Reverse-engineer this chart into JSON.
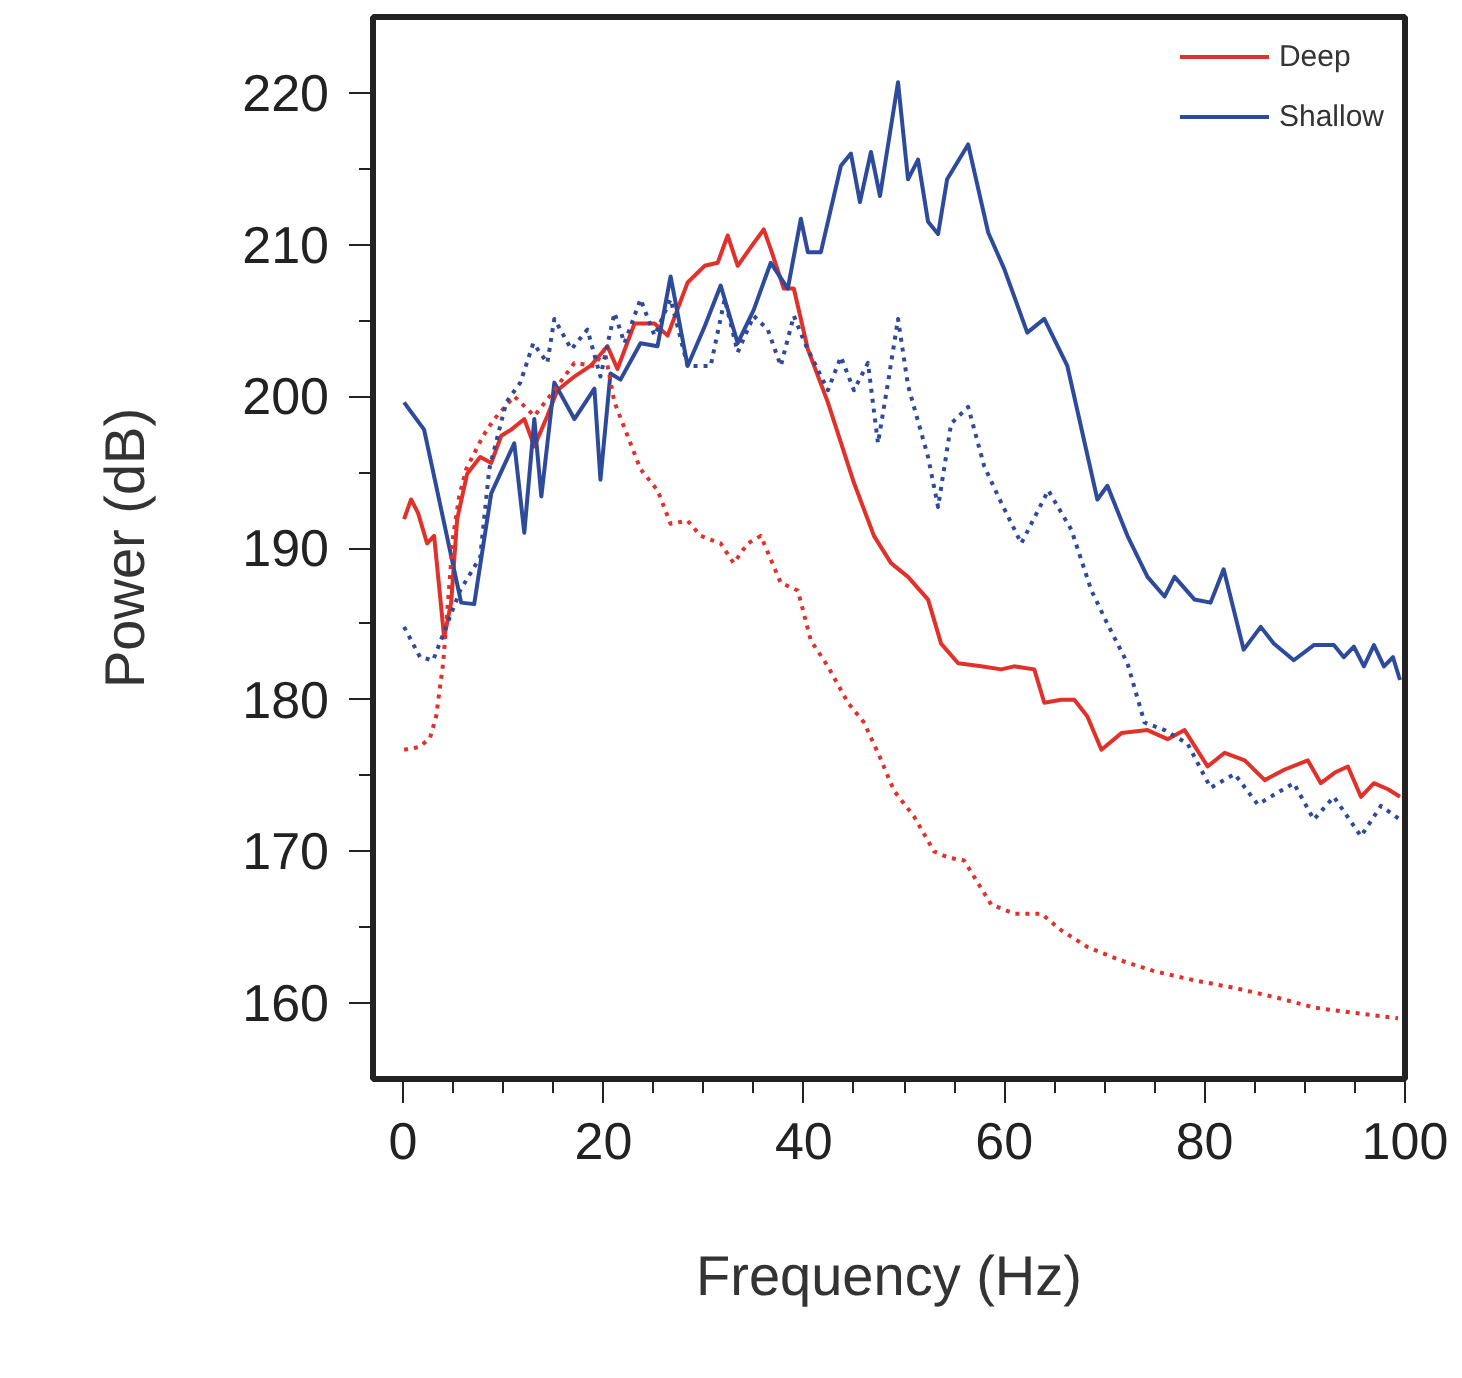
{
  "chart_data": {
    "type": "line",
    "xlabel": "Frequency (Hz)",
    "ylabel": "Power (dB)",
    "xlim": [
      -3,
      100
    ],
    "ylim": [
      155,
      225
    ],
    "xticks": [
      0,
      {
        "value": 5,
        "label": null
      },
      {
        "value": 10,
        "label": null
      },
      {
        "value": 15,
        "label": null
      },
      20,
      {
        "value": 25,
        "label": null
      },
      {
        "value": 30,
        "label": null
      },
      {
        "value": 35,
        "label": null
      },
      40,
      {
        "value": 45,
        "label": null
      },
      {
        "value": 50,
        "label": null
      },
      {
        "value": 55,
        "label": null
      },
      60,
      {
        "value": 65,
        "label": null
      },
      {
        "value": 70,
        "label": null
      },
      {
        "value": 75,
        "label": null
      },
      80,
      {
        "value": 85,
        "label": null
      },
      {
        "value": 90,
        "label": null
      },
      {
        "value": 95,
        "label": null
      },
      100
    ],
    "yticks": [
      160,
      {
        "value": 165,
        "label": null
      },
      170,
      {
        "value": 175,
        "label": null
      },
      180,
      {
        "value": 185,
        "label": null
      },
      190,
      {
        "value": 195,
        "label": null
      },
      200,
      {
        "value": 205,
        "label": null
      },
      210,
      {
        "value": 215,
        "label": null
      },
      220
    ],
    "grid": false,
    "legend": "top right",
    "series": [
      {
        "name": "Deep",
        "color": "#e0312b",
        "line_style": "solid",
        "x": [
          0.1,
          0.8,
          1.5,
          2.4,
          3.1,
          3.7,
          4.1,
          4.8,
          5.4,
          6.4,
          7.7,
          8.8,
          9.8,
          10.8,
          12.1,
          13.1,
          14.4,
          15.4,
          17.1,
          18.7,
          20.4,
          21.4,
          23.1,
          25.1,
          26.4,
          28.4,
          30.1,
          31.4,
          32.4,
          33.4,
          35.0,
          36.0,
          36.7,
          38.0,
          39.0,
          40.4,
          42.4,
          45.0,
          47.0,
          48.7,
          50.4,
          52.4,
          53.7,
          55.4,
          57.7,
          59.7,
          61.0,
          63.0,
          64.0,
          65.7,
          67.0,
          68.3,
          69.7,
          71.7,
          74.3,
          76.3,
          78.0,
          80.3,
          82.0,
          84.0,
          86.0,
          88.0,
          90.3,
          91.6,
          93.0,
          94.3,
          95.6,
          96.9,
          98.3,
          99.5
        ],
        "values": [
          191.9,
          193.2,
          192.3,
          190.3,
          190.8,
          186.8,
          184.1,
          186.4,
          191.9,
          194.9,
          196.0,
          195.6,
          197.4,
          197.8,
          198.5,
          196.7,
          198.7,
          200.4,
          201.3,
          202.0,
          203.3,
          201.8,
          204.8,
          204.8,
          204.0,
          207.5,
          208.6,
          208.8,
          210.6,
          208.6,
          210.1,
          211.0,
          209.7,
          207.1,
          207.1,
          203.1,
          199.6,
          194.3,
          190.8,
          189.0,
          188.1,
          186.6,
          183.7,
          182.4,
          182.2,
          182.0,
          182.2,
          182.0,
          179.8,
          180.0,
          180.0,
          178.9,
          176.7,
          177.8,
          178.0,
          177.4,
          178.0,
          175.6,
          176.5,
          176.0,
          174.7,
          175.4,
          176.0,
          174.5,
          175.2,
          175.6,
          173.6,
          174.5,
          174.1,
          173.6
        ]
      },
      {
        "name": "Shallow",
        "color": "#2e4a9a",
        "line_style": "solid",
        "x": [
          0.1,
          2.1,
          5.8,
          7.1,
          8.8,
          11.1,
          12.1,
          13.1,
          13.8,
          15.1,
          17.1,
          19.1,
          19.7,
          20.7,
          21.7,
          23.7,
          25.4,
          26.7,
          28.4,
          30.1,
          31.7,
          33.4,
          35.0,
          36.7,
          38.4,
          39.7,
          40.4,
          41.7,
          43.7,
          44.7,
          45.6,
          46.7,
          47.6,
          49.4,
          50.4,
          51.4,
          52.4,
          53.4,
          54.3,
          56.4,
          58.4,
          60.0,
          62.3,
          64.0,
          66.3,
          69.3,
          70.3,
          72.3,
          74.3,
          76.0,
          77.0,
          79.0,
          80.6,
          81.9,
          83.9,
          85.6,
          86.9,
          88.9,
          90.9,
          92.9,
          93.9,
          94.9,
          95.9,
          96.9,
          97.9,
          98.8,
          99.5
        ],
        "values": [
          199.6,
          197.8,
          186.4,
          186.3,
          193.6,
          196.9,
          191.0,
          198.5,
          193.4,
          200.9,
          198.5,
          200.5,
          194.5,
          201.5,
          201.1,
          203.5,
          203.3,
          207.9,
          202.0,
          204.6,
          207.3,
          203.5,
          205.7,
          208.8,
          207.1,
          211.7,
          209.5,
          209.5,
          215.2,
          216.0,
          212.8,
          216.1,
          213.2,
          220.7,
          214.3,
          215.6,
          211.5,
          210.7,
          214.3,
          216.6,
          210.8,
          208.4,
          204.2,
          205.1,
          202.0,
          193.2,
          194.1,
          190.8,
          188.1,
          186.8,
          188.1,
          186.6,
          186.4,
          188.6,
          183.3,
          184.8,
          183.7,
          182.6,
          183.6,
          183.6,
          182.8,
          183.5,
          182.2,
          183.6,
          182.2,
          182.8,
          181.3
        ]
      },
      {
        "color": "#e0312b",
        "line_style": "dotted",
        "x": [
          0.1,
          1.7,
          2.7,
          3.3,
          4.0,
          5.0,
          5.6,
          6.3,
          8.0,
          9.1,
          11.1,
          13.1,
          15.1,
          17.1,
          19.1,
          20.1,
          21.1,
          22.4,
          23.7,
          25.4,
          26.7,
          28.4,
          29.7,
          31.7,
          33.0,
          34.4,
          35.7,
          37.7,
          39.4,
          40.7,
          42.4,
          44.4,
          46.0,
          47.6,
          49.0,
          51.0,
          53.0,
          54.4,
          56.0,
          58.7,
          61.0,
          63.7,
          65.7,
          68.3,
          71.7,
          75.0,
          79.0,
          83.0,
          87.0,
          91.0,
          95.6,
          99.3
        ],
        "values": [
          176.7,
          176.9,
          177.5,
          178.9,
          182.4,
          190.8,
          193.4,
          195.2,
          197.4,
          198.5,
          200.0,
          198.7,
          200.4,
          202.2,
          202.0,
          203.1,
          199.6,
          197.4,
          195.2,
          193.8,
          191.6,
          191.8,
          190.8,
          190.3,
          189.0,
          190.3,
          190.8,
          187.7,
          187.2,
          183.9,
          182.2,
          179.8,
          178.5,
          176.2,
          174.0,
          172.3,
          170.0,
          169.6,
          169.4,
          166.5,
          165.9,
          165.9,
          164.8,
          163.7,
          162.8,
          162.1,
          161.5,
          161.0,
          160.4,
          159.7,
          159.3,
          159.0
        ]
      },
      {
        "color": "#2e4a9a",
        "line_style": "dotted",
        "x": [
          0.1,
          1.7,
          3.0,
          5.7,
          7.7,
          8.6,
          10.3,
          11.7,
          13.0,
          14.4,
          15.1,
          16.8,
          18.4,
          19.7,
          21.1,
          22.1,
          23.7,
          25.1,
          26.7,
          28.4,
          30.7,
          32.1,
          33.4,
          35.0,
          36.4,
          37.7,
          39.0,
          40.1,
          42.4,
          43.7,
          45.0,
          46.4,
          47.4,
          48.4,
          49.4,
          50.4,
          52.4,
          53.4,
          54.7,
          56.4,
          58.0,
          59.4,
          61.7,
          64.4,
          66.7,
          68.7,
          70.3,
          72.3,
          74.0,
          76.0,
          78.3,
          80.6,
          83.0,
          85.3,
          88.9,
          90.9,
          92.9,
          95.6,
          97.6,
          99.5
        ],
        "values": [
          184.8,
          182.8,
          182.6,
          187.2,
          189.4,
          195.2,
          199.6,
          200.9,
          203.5,
          202.2,
          205.1,
          203.1,
          204.4,
          201.3,
          205.5,
          203.5,
          206.4,
          204.0,
          206.4,
          202.0,
          202.0,
          206.4,
          202.9,
          205.3,
          204.4,
          202.0,
          205.3,
          203.5,
          200.4,
          202.6,
          200.4,
          202.2,
          196.9,
          200.9,
          205.1,
          200.7,
          196.0,
          192.7,
          198.2,
          199.3,
          195.4,
          193.4,
          190.3,
          193.8,
          191.2,
          187.2,
          185.0,
          182.4,
          178.5,
          178.0,
          177.1,
          174.2,
          175.1,
          173.1,
          174.5,
          172.1,
          173.6,
          171.0,
          173.0,
          172.1
        ]
      }
    ]
  }
}
